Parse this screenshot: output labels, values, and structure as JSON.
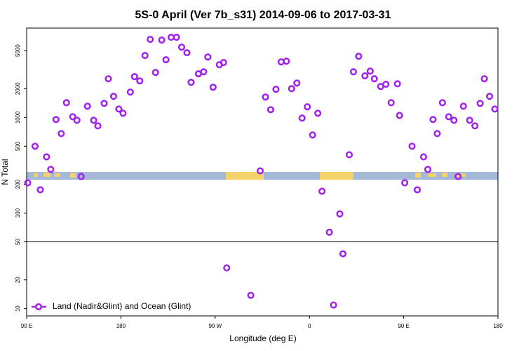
{
  "chart_data": {
    "type": "scatter",
    "title": "5S-0 April (Ver 7b_s31)   2014-09-06 to 2017-03-31",
    "x_label": "Longitude (deg E)",
    "y_label": "N Total",
    "log_y": true,
    "legend": "bottom-left",
    "ref_line": 50,
    "xlim": [
      90,
      540
    ],
    "xticks": [
      {
        "value": 90,
        "label": "90 E"
      },
      180,
      {
        "value": 270,
        "label": "90 W"
      },
      {
        "value": 360,
        "label": "0"
      },
      {
        "value": 450,
        "label": "90 E"
      },
      {
        "value": 540,
        "label": "180"
      }
    ],
    "ylim": [
      8.4,
      8600
    ],
    "yticks": [
      10,
      20,
      50,
      100,
      200,
      500,
      1000,
      2000,
      5000
    ],
    "series": [
      {
        "name": "Land (Nadir&Glint) and Ocean (Glint)",
        "color": "#a020f0",
        "x": [
          91,
          98,
          103,
          109,
          113,
          118,
          123,
          128,
          134,
          138,
          142,
          148,
          154,
          158,
          164,
          168,
          173,
          178,
          182,
          189,
          193,
          198,
          203,
          208,
          213,
          219,
          223,
          228,
          233,
          238,
          243,
          247,
          254,
          259,
          263,
          268,
          274,
          278,
          281,
          304,
          313,
          318,
          323,
          328,
          333,
          338,
          343,
          348,
          353,
          358,
          363,
          368,
          372,
          379,
          383,
          389,
          392,
          398,
          402,
          407,
          413,
          418,
          422,
          428,
          433,
          438,
          444,
          446,
          451,
          458,
          463,
          469,
          473,
          478,
          482,
          487,
          493,
          498,
          502,
          507,
          513,
          518,
          523,
          527,
          532,
          537
        ],
        "values": [
          207,
          500,
          175,
          387,
          286,
          951,
          678,
          1426,
          1017,
          934,
          241,
          1311,
          934,
          816,
          1403,
          2537,
          1663,
          1225,
          1107,
          1840,
          2670,
          2410,
          4440,
          6550,
          2956,
          6440,
          4010,
          6890,
          6890,
          5430,
          4750,
          2330,
          2860,
          3000,
          4290,
          2070,
          3560,
          3750,
          26.7,
          13.8,
          276,
          1635,
          1205,
          1970,
          3810,
          3870,
          2000,
          2290,
          984,
          1290,
          655,
          1107,
          169,
          63,
          10.9,
          98,
          37.5,
          407,
          3000,
          4360,
          2720,
          3050,
          2540,
          2110,
          2220,
          1426,
          2250,
          1050,
          207,
          500,
          175,
          387,
          286,
          951,
          678,
          1426,
          1017,
          934,
          241,
          1311,
          934,
          816,
          1403,
          2537,
          1663,
          1225
        ]
      }
    ]
  }
}
